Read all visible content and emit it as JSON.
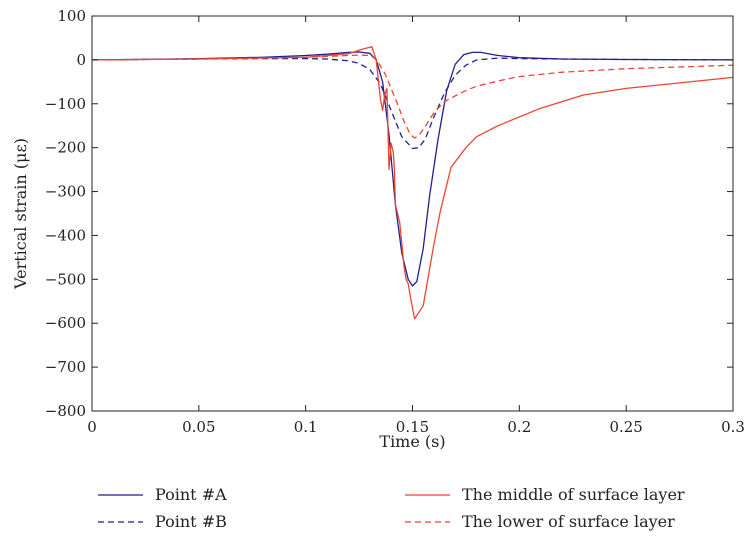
{
  "chart_data": {
    "type": "line",
    "xlabel": "Time (s)",
    "ylabel": "Vertical strain (με)",
    "xlim": [
      0,
      0.3
    ],
    "ylim": [
      -800,
      100
    ],
    "xticks": [
      0,
      0.05,
      0.1,
      0.15,
      0.2,
      0.25,
      0.3
    ],
    "xtick_labels": [
      "0",
      "0.05",
      "0.1",
      "0.15",
      "0.2",
      "0.25",
      "0.3"
    ],
    "yticks": [
      100,
      0,
      -100,
      -200,
      -300,
      -400,
      -500,
      -600,
      -700,
      -800
    ],
    "ytick_labels": [
      "100",
      "0",
      "−100",
      "−200",
      "−300",
      "−400",
      "−500",
      "−600",
      "−700",
      "−800"
    ],
    "grid": false,
    "legend_position": "bottom",
    "series": [
      {
        "name": "Point #A",
        "color": "#1f1f8f",
        "dash": "solid",
        "x": [
          0,
          0.02,
          0.05,
          0.08,
          0.1,
          0.11,
          0.12,
          0.125,
          0.13,
          0.133,
          0.136,
          0.139,
          0.142,
          0.145,
          0.148,
          0.15,
          0.152,
          0.155,
          0.158,
          0.162,
          0.166,
          0.17,
          0.174,
          0.178,
          0.182,
          0.19,
          0.2,
          0.22,
          0.25,
          0.3
        ],
        "y": [
          0,
          1,
          3,
          6,
          10,
          13,
          17,
          18,
          15,
          0,
          -50,
          -170,
          -330,
          -440,
          -500,
          -515,
          -505,
          -430,
          -310,
          -180,
          -70,
          -10,
          12,
          17,
          17,
          10,
          5,
          2,
          1,
          0
        ]
      },
      {
        "name": "Point #B",
        "color": "#1f1f8f",
        "dash": "dashed",
        "x": [
          0,
          0.02,
          0.05,
          0.08,
          0.1,
          0.11,
          0.12,
          0.125,
          0.13,
          0.135,
          0.14,
          0.145,
          0.15,
          0.153,
          0.156,
          0.16,
          0.165,
          0.17,
          0.175,
          0.18,
          0.19,
          0.2,
          0.22,
          0.25,
          0.3
        ],
        "y": [
          0,
          1,
          2,
          3,
          3,
          2,
          -2,
          -8,
          -22,
          -55,
          -115,
          -175,
          -202,
          -200,
          -180,
          -130,
          -75,
          -35,
          -12,
          0,
          4,
          3,
          2,
          1,
          0
        ]
      },
      {
        "name": "The middle of surface layer",
        "color": "#ee4433",
        "dash": "solid",
        "x": [
          0,
          0.05,
          0.1,
          0.12,
          0.127,
          0.131,
          0.133,
          0.135,
          0.136,
          0.137,
          0.138,
          0.139,
          0.14,
          0.141,
          0.1415,
          0.142,
          0.144,
          0.146,
          0.147,
          0.148,
          0.149,
          0.15,
          0.151,
          0.155,
          0.16,
          0.163,
          0.168,
          0.175,
          0.18,
          0.19,
          0.21,
          0.23,
          0.25,
          0.27,
          0.3
        ],
        "y": [
          0,
          2,
          6,
          14,
          25,
          30,
          0,
          -90,
          -115,
          -80,
          -65,
          -250,
          -190,
          -210,
          -245,
          -330,
          -370,
          -470,
          -500,
          -510,
          -540,
          -565,
          -590,
          -560,
          -420,
          -345,
          -245,
          -200,
          -175,
          -150,
          -110,
          -80,
          -65,
          -55,
          -40
        ]
      },
      {
        "name": "The lower of surface layer",
        "color": "#ee4433",
        "dash": "dashed",
        "x": [
          0,
          0.05,
          0.1,
          0.11,
          0.12,
          0.125,
          0.13,
          0.133,
          0.137,
          0.14,
          0.143,
          0.146,
          0.149,
          0.151,
          0.153,
          0.156,
          0.16,
          0.165,
          0.17,
          0.175,
          0.18,
          0.19,
          0.2,
          0.22,
          0.25,
          0.3
        ],
        "y": [
          0,
          2,
          6,
          8,
          10,
          11,
          10,
          2,
          -30,
          -65,
          -100,
          -140,
          -170,
          -178,
          -172,
          -152,
          -120,
          -95,
          -82,
          -70,
          -60,
          -48,
          -38,
          -28,
          -20,
          -12
        ]
      }
    ]
  }
}
